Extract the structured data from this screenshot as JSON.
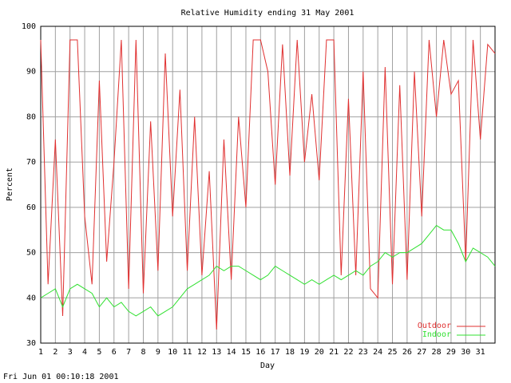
{
  "chart_data": {
    "type": "line",
    "title": "Relative Humidity ending 31 May 2001",
    "x_label": "Day",
    "y_label": "Percent",
    "footer": "Fri Jun 01 00:10:18 2001",
    "x": [
      1,
      1.5,
      2,
      2.5,
      3,
      3.5,
      4,
      4.5,
      5,
      5.5,
      6,
      6.5,
      7,
      7.5,
      8,
      8.5,
      9,
      9.5,
      10,
      10.5,
      11,
      11.5,
      12,
      12.5,
      13,
      13.5,
      14,
      14.5,
      15,
      15.5,
      16,
      16.5,
      17,
      17.5,
      18,
      18.5,
      19,
      19.5,
      20,
      20.5,
      21,
      21.5,
      22,
      22.5,
      23,
      23.5,
      24,
      24.5,
      25,
      25.5,
      26,
      26.5,
      27,
      27.5,
      28,
      28.5,
      29,
      29.5,
      30,
      30.5,
      31,
      31.5,
      32
    ],
    "series": [
      {
        "name": "Outdoor",
        "color": "#e03030",
        "values": [
          97,
          43,
          75,
          36,
          97,
          97,
          58,
          43,
          88,
          48,
          70,
          97,
          42,
          97,
          41,
          79,
          46,
          94,
          58,
          86,
          46,
          80,
          45,
          68,
          33,
          75,
          44,
          80,
          60,
          97,
          97,
          90,
          65,
          96,
          67,
          97,
          70,
          85,
          66,
          97,
          97,
          45,
          84,
          45,
          90,
          42,
          40,
          91,
          43,
          87,
          44,
          90,
          58,
          97,
          80,
          97,
          85,
          88,
          48,
          97,
          75,
          96,
          94
        ]
      },
      {
        "name": "Indoor",
        "color": "#30e030",
        "values": [
          40,
          41,
          42,
          38,
          42,
          43,
          42,
          41,
          38,
          40,
          38,
          39,
          37,
          36,
          37,
          38,
          36,
          37,
          38,
          40,
          42,
          43,
          44,
          45,
          47,
          46,
          47,
          47,
          46,
          45,
          44,
          45,
          47,
          46,
          45,
          44,
          43,
          44,
          43,
          44,
          45,
          44,
          45,
          46,
          45,
          47,
          48,
          50,
          49,
          50,
          50,
          51,
          52,
          54,
          56,
          55,
          55,
          52,
          48,
          51,
          50,
          49,
          47
        ]
      }
    ],
    "xlim": [
      1,
      32
    ],
    "ylim": [
      30,
      100
    ],
    "xticks": [
      1,
      2,
      3,
      4,
      5,
      6,
      7,
      8,
      9,
      10,
      11,
      12,
      13,
      14,
      15,
      16,
      17,
      18,
      19,
      20,
      21,
      22,
      23,
      24,
      25,
      26,
      27,
      28,
      29,
      30,
      31
    ],
    "yticks": [
      30,
      40,
      50,
      60,
      70,
      80,
      90,
      100
    ],
    "grid": true,
    "legend": "lower right"
  }
}
